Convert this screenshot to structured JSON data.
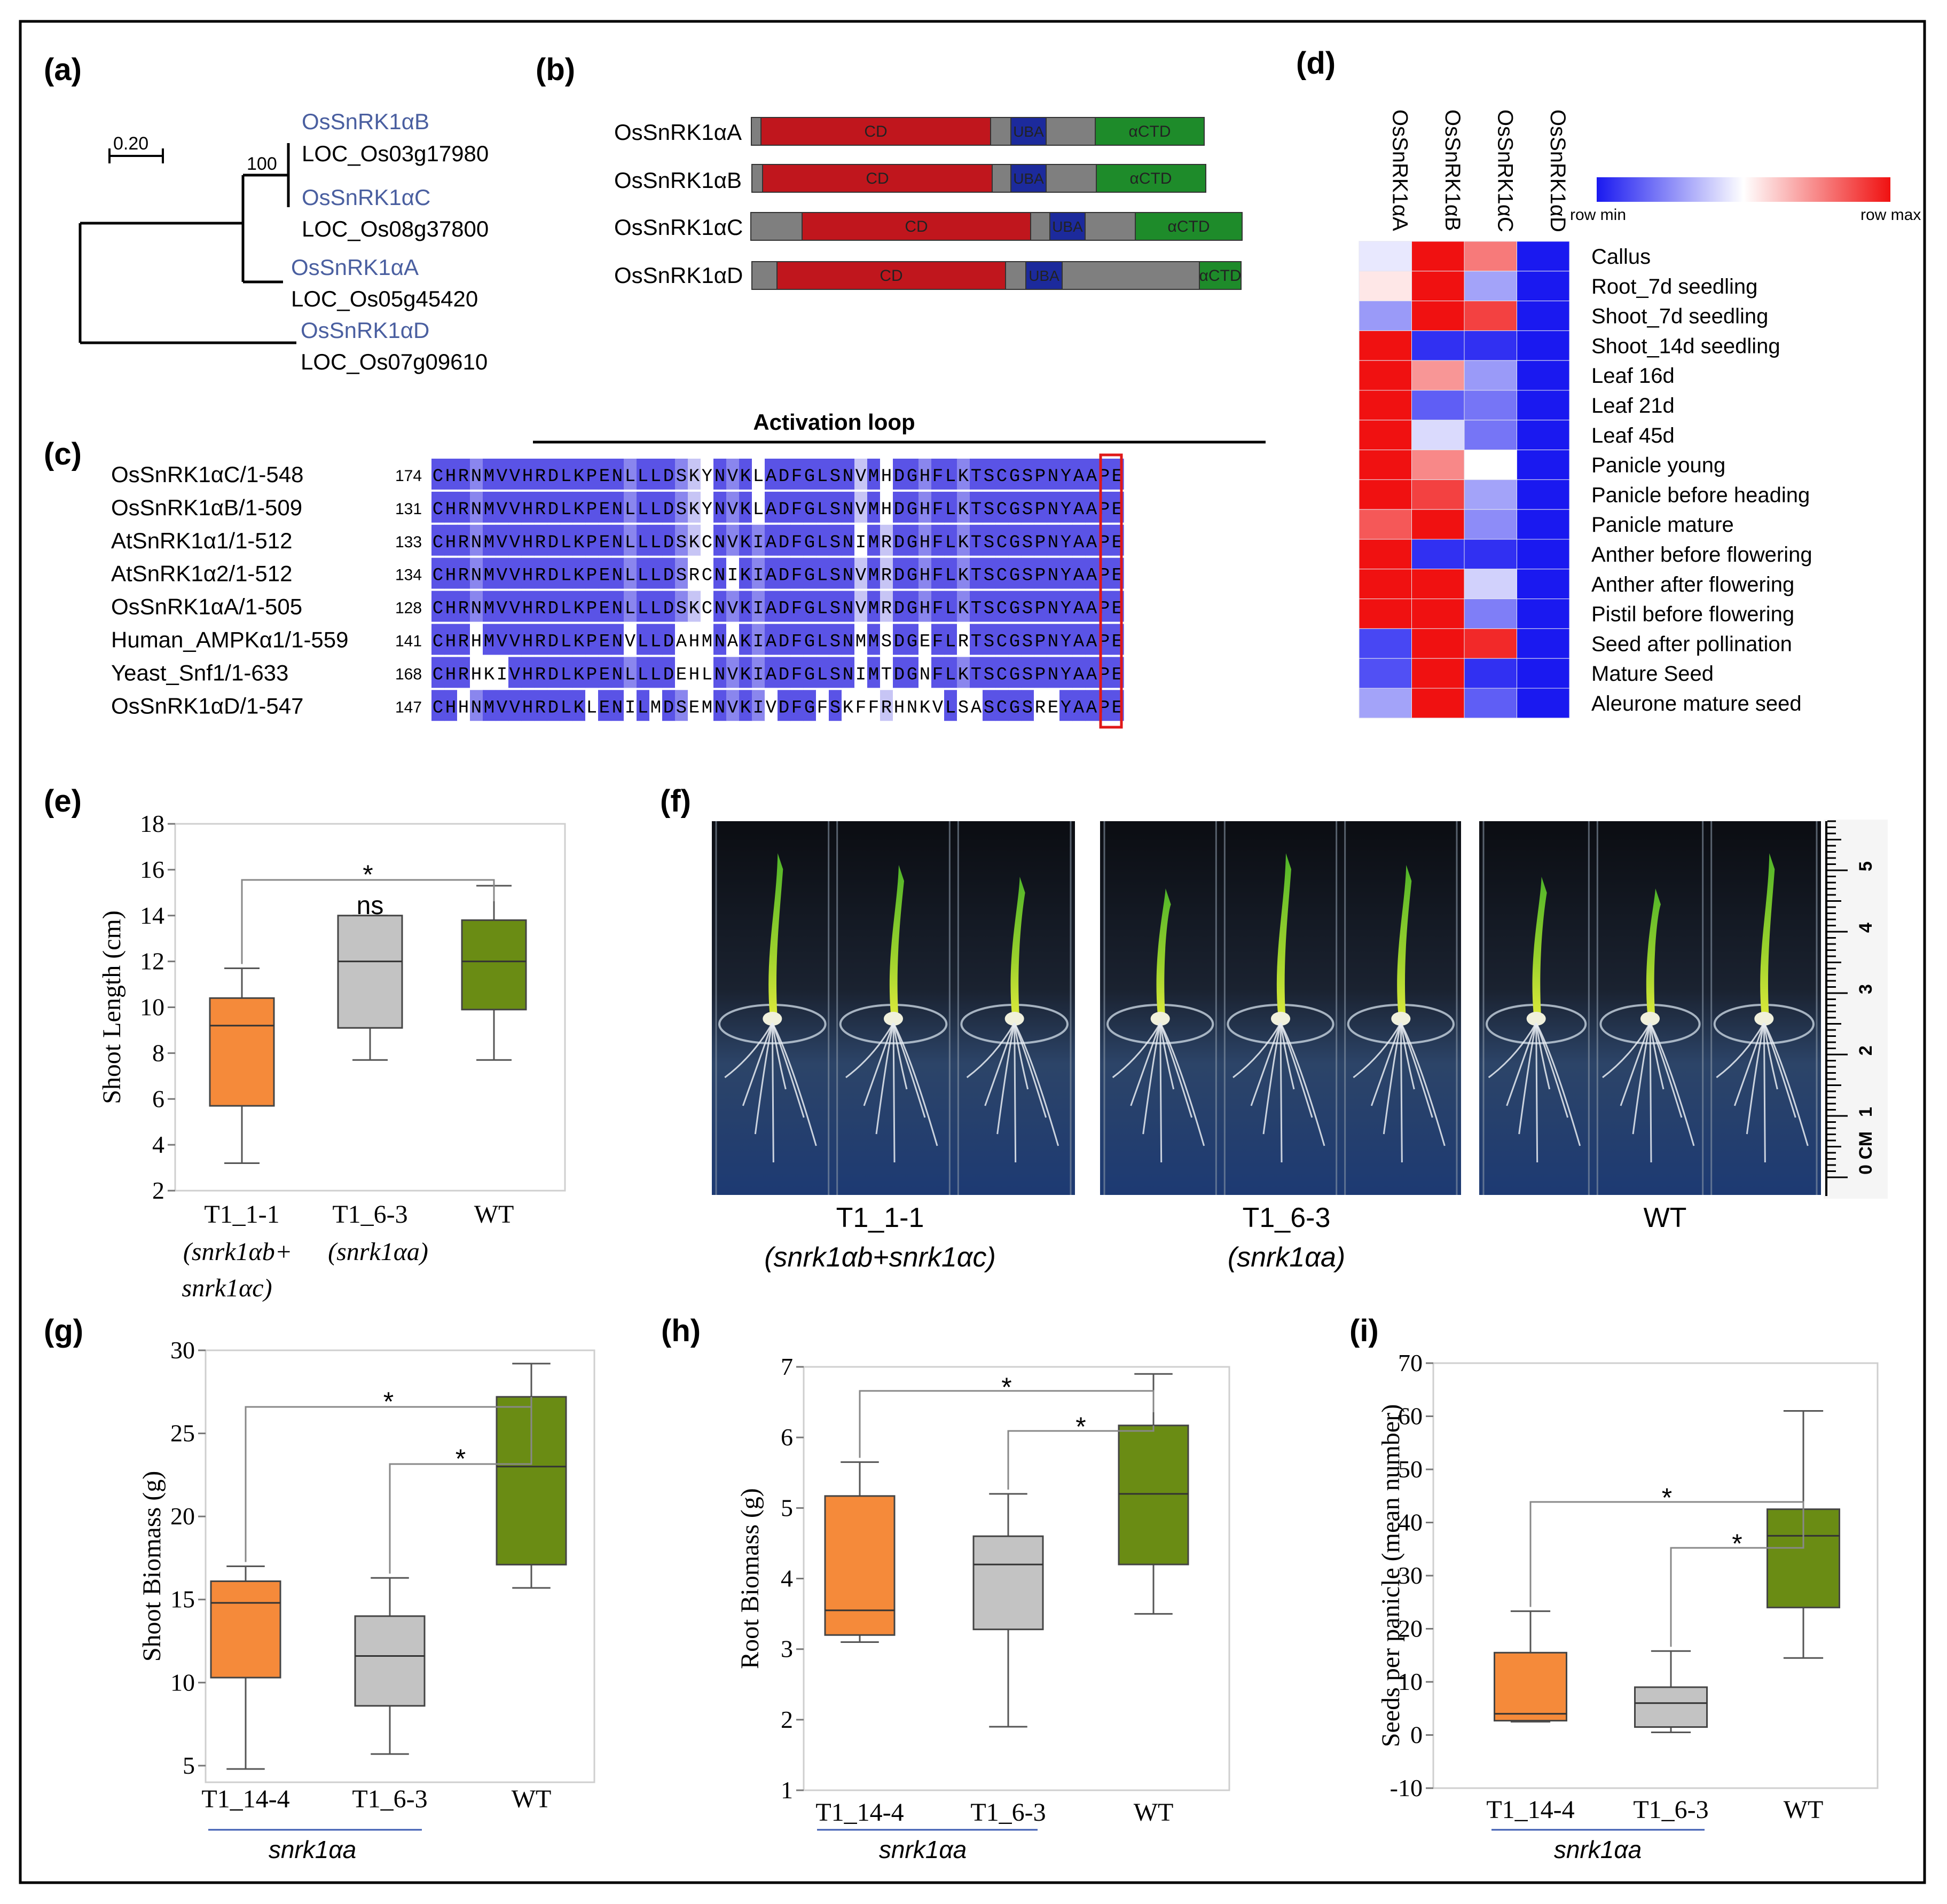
{
  "panels": {
    "a": {
      "label": "(a)",
      "scale": "0.20",
      "bootstrap": "100",
      "tree_tips": [
        {
          "name": "OsSnRK1αB",
          "locus": "LOC_Os03g17980"
        },
        {
          "name": "OsSnRK1αC",
          "locus": "LOC_Os08g37800"
        },
        {
          "name": "OsSnRK1αA",
          "locus": "LOC_Os05g45420"
        },
        {
          "name": "OsSnRK1αD",
          "locus": "LOC_Os07g09610"
        }
      ]
    },
    "b": {
      "label": "(b)",
      "proteins": [
        {
          "name": "OsSnRK1αA",
          "domains": [
            "CD",
            "UBA",
            "αCTD"
          ]
        },
        {
          "name": "OsSnRK1αB",
          "domains": [
            "CD",
            "UBA",
            "αCTD"
          ]
        },
        {
          "name": "OsSnRK1αC",
          "domains": [
            "CD",
            "UBA",
            "αCTD"
          ]
        },
        {
          "name": "OsSnRK1αD",
          "domains": [
            "CD",
            "UBA",
            "αCTD"
          ]
        }
      ]
    },
    "c": {
      "label": "(c)",
      "title": "Activation loop",
      "rows": [
        {
          "name": "OsSnRK1αC/1-548",
          "start": "174",
          "seq": "CHRNMVVHRDLKPENLLLDSKYNVKLADFGLSNVMHDGHFLKTSCGSPNYAAPE"
        },
        {
          "name": "OsSnRK1αB/1-509",
          "start": "131",
          "seq": "CHRNMVVHRDLKPENLLLDSKYNVKLADFGLSNVMHDGHFLKTSCGSPNYAAPE"
        },
        {
          "name": "AtSnRK1α1/1-512",
          "start": "133",
          "seq": "CHRNMVVHRDLKPENLLLDSKCNVKIADFGLSNIMRDGHFLKTSCGSPNYAAPE"
        },
        {
          "name": "AtSnRK1α2/1-512",
          "start": "134",
          "seq": "CHRNMVVHRDLKPENLLLDSRCNIKIADFGLSNVMRDGHFLKTSCGSPNYAAPE"
        },
        {
          "name": "OsSnRK1αA/1-505",
          "start": "128",
          "seq": "CHRNMVVHRDLKPENLLLDSKCNVKIADFGLSNVMRDGHFLKTSCGSPNYAAPE"
        },
        {
          "name": "Human_AMPKα1/1-559",
          "start": "141",
          "seq": "CHRHMVVHRDLKPENVLLDAHMNAKIADFGLSNMMSDGEFLRTSCGSPNYAAPE"
        },
        {
          "name": "Yeast_Snf1/1-633",
          "start": "168",
          "seq": "CHRHKIVHRDLKPENLLLDEHLNVKIADFGLSNIMTDGNFLKTSCGSPNYAAPE"
        },
        {
          "name": "OsSnRK1αD/1-547",
          "start": "147",
          "seq": "CHHNMVVHRDLKLENILMDSEMNVKIVDFGFSKFFRHNKVLSASCGSREYAAPE"
        }
      ]
    },
    "d": {
      "label": "(d)",
      "columns": [
        "OsSnRK1αA",
        "OsSnRK1αB",
        "OsSnRK1αC",
        "OsSnRK1αD"
      ],
      "legend_min": "row min",
      "legend_max": "row max",
      "tissues": [
        "Callus",
        "Root_7d seedling",
        "Shoot_7d seedling",
        "Shoot_14d seedling",
        "Leaf 16d",
        "Leaf 21d",
        "Leaf 45d",
        "Panicle young",
        "Panicle before heading",
        "Panicle mature",
        "Anther before flowering",
        "Anther after flowering",
        "Pistil before flowering",
        "Seed after pollination",
        "Mature Seed",
        "Aleurone mature seed"
      ],
      "matrix": [
        [
          0.45,
          1.0,
          0.78,
          0.0
        ],
        [
          0.55,
          1.0,
          0.3,
          0.0
        ],
        [
          0.28,
          1.0,
          0.9,
          0.0
        ],
        [
          1.0,
          0.05,
          0.05,
          0.0
        ],
        [
          1.0,
          0.72,
          0.28,
          0.0
        ],
        [
          1.0,
          0.15,
          0.2,
          0.0
        ],
        [
          1.0,
          0.42,
          0.2,
          0.0
        ],
        [
          1.0,
          0.75,
          0.5,
          0.0
        ],
        [
          1.0,
          0.9,
          0.3,
          0.0
        ],
        [
          0.85,
          1.0,
          0.25,
          0.0
        ],
        [
          1.0,
          0.05,
          0.05,
          0.0
        ],
        [
          1.0,
          1.0,
          0.4,
          0.0
        ],
        [
          1.0,
          1.0,
          0.22,
          0.0
        ],
        [
          0.1,
          1.0,
          0.95,
          0.0
        ],
        [
          0.12,
          1.0,
          0.05,
          0.0
        ],
        [
          0.3,
          1.0,
          0.15,
          0.0
        ]
      ]
    },
    "e": {
      "label": "(e)"
    },
    "f": {
      "label": "(f)",
      "captions": [
        "T1_1-1",
        "T1_6-3",
        "WT"
      ],
      "genotypes": [
        "(snrk1αb+snrk1αc)",
        "(snrk1αa)"
      ],
      "ruler_unit": "0 CM",
      "ruler_ticks": [
        "1",
        "2",
        "3",
        "4",
        "5"
      ]
    },
    "g": {
      "label": "(g)",
      "genotype": "snrk1αa"
    },
    "h": {
      "label": "(h)",
      "genotype": "snrk1αa"
    },
    "i": {
      "label": "(i)",
      "genotype": "snrk1αa"
    }
  },
  "chart_data": [
    {
      "id": "e",
      "type": "box",
      "ylabel": "Shoot Length (cm)",
      "ylim": [
        2,
        18
      ],
      "yticks": [
        2,
        4,
        6,
        8,
        10,
        12,
        14,
        16,
        18
      ],
      "categories": [
        "T1_1-1",
        "T1_6-3",
        "WT"
      ],
      "category_sublabels": [
        "(snrk1αb+",
        "snrk1αc)",
        "(snrk1αa)"
      ],
      "colors": [
        "#f58a3a",
        "#c3c3c3",
        "#6a8c14"
      ],
      "boxes": [
        {
          "min": 3.2,
          "q1": 5.7,
          "median": 9.2,
          "q3": 10.4,
          "max": 11.7
        },
        {
          "min": 7.7,
          "q1": 9.1,
          "median": 12.0,
          "q3": 14.0,
          "max": 14.0
        },
        {
          "min": 7.7,
          "q1": 9.9,
          "median": 12.0,
          "q3": 13.8,
          "max": 15.3
        }
      ],
      "annotations": [
        {
          "from": 0,
          "to": 2,
          "label": "*"
        },
        {
          "at": 1,
          "label": "ns"
        }
      ]
    },
    {
      "id": "g",
      "type": "box",
      "ylabel": "Shoot Biomass (g)",
      "ylim": [
        4,
        30
      ],
      "yticks": [
        5,
        10,
        15,
        20,
        25,
        30
      ],
      "categories": [
        "T1_14-4",
        "T1_6-3",
        "WT"
      ],
      "colors": [
        "#f58a3a",
        "#c3c3c3",
        "#6a8c14"
      ],
      "boxes": [
        {
          "min": 4.8,
          "q1": 10.3,
          "median": 14.8,
          "q3": 16.1,
          "max": 17.0
        },
        {
          "min": 5.7,
          "q1": 8.6,
          "median": 11.6,
          "q3": 14.0,
          "max": 16.3
        },
        {
          "min": 15.7,
          "q1": 17.1,
          "median": 23.0,
          "q3": 27.2,
          "max": 29.2
        }
      ],
      "annotations": [
        {
          "from": 0,
          "to": 2,
          "label": "*"
        },
        {
          "from": 1,
          "to": 2,
          "label": "*"
        }
      ]
    },
    {
      "id": "h",
      "type": "box",
      "ylabel": "Root Biomass (g)",
      "ylim": [
        1,
        7
      ],
      "yticks": [
        1,
        2,
        3,
        4,
        5,
        6,
        7
      ],
      "categories": [
        "T1_14-4",
        "T1_6-3",
        "WT"
      ],
      "colors": [
        "#f58a3a",
        "#c3c3c3",
        "#6a8c14"
      ],
      "boxes": [
        {
          "min": 3.1,
          "q1": 3.2,
          "median": 3.55,
          "q3": 5.17,
          "max": 5.65
        },
        {
          "min": 1.9,
          "q1": 3.28,
          "median": 4.2,
          "q3": 4.6,
          "max": 5.2
        },
        {
          "min": 3.5,
          "q1": 4.2,
          "median": 5.2,
          "q3": 6.17,
          "max": 6.9
        }
      ],
      "annotations": [
        {
          "from": 0,
          "to": 2,
          "label": "*"
        },
        {
          "from": 1,
          "to": 2,
          "label": "*"
        }
      ]
    },
    {
      "id": "i",
      "type": "box",
      "ylabel": "Seeds per panicle (mean number)",
      "ylim": [
        -10,
        70
      ],
      "yticks": [
        -10,
        0,
        10,
        20,
        30,
        40,
        50,
        60,
        70
      ],
      "categories": [
        "T1_14-4",
        "T1_6-3",
        "WT"
      ],
      "colors": [
        "#f58a3a",
        "#c3c3c3",
        "#6a8c14"
      ],
      "boxes": [
        {
          "min": 2.5,
          "q1": 2.7,
          "median": 4.0,
          "q3": 15.5,
          "max": 23.3
        },
        {
          "min": 0.5,
          "q1": 1.5,
          "median": 6.0,
          "q3": 9.0,
          "max": 15.8
        },
        {
          "min": 14.5,
          "q1": 24.0,
          "median": 37.5,
          "q3": 42.5,
          "max": 61.0
        }
      ],
      "annotations": [
        {
          "from": 0,
          "to": 2,
          "label": "*"
        },
        {
          "from": 1,
          "to": 2,
          "label": "*"
        }
      ]
    }
  ]
}
